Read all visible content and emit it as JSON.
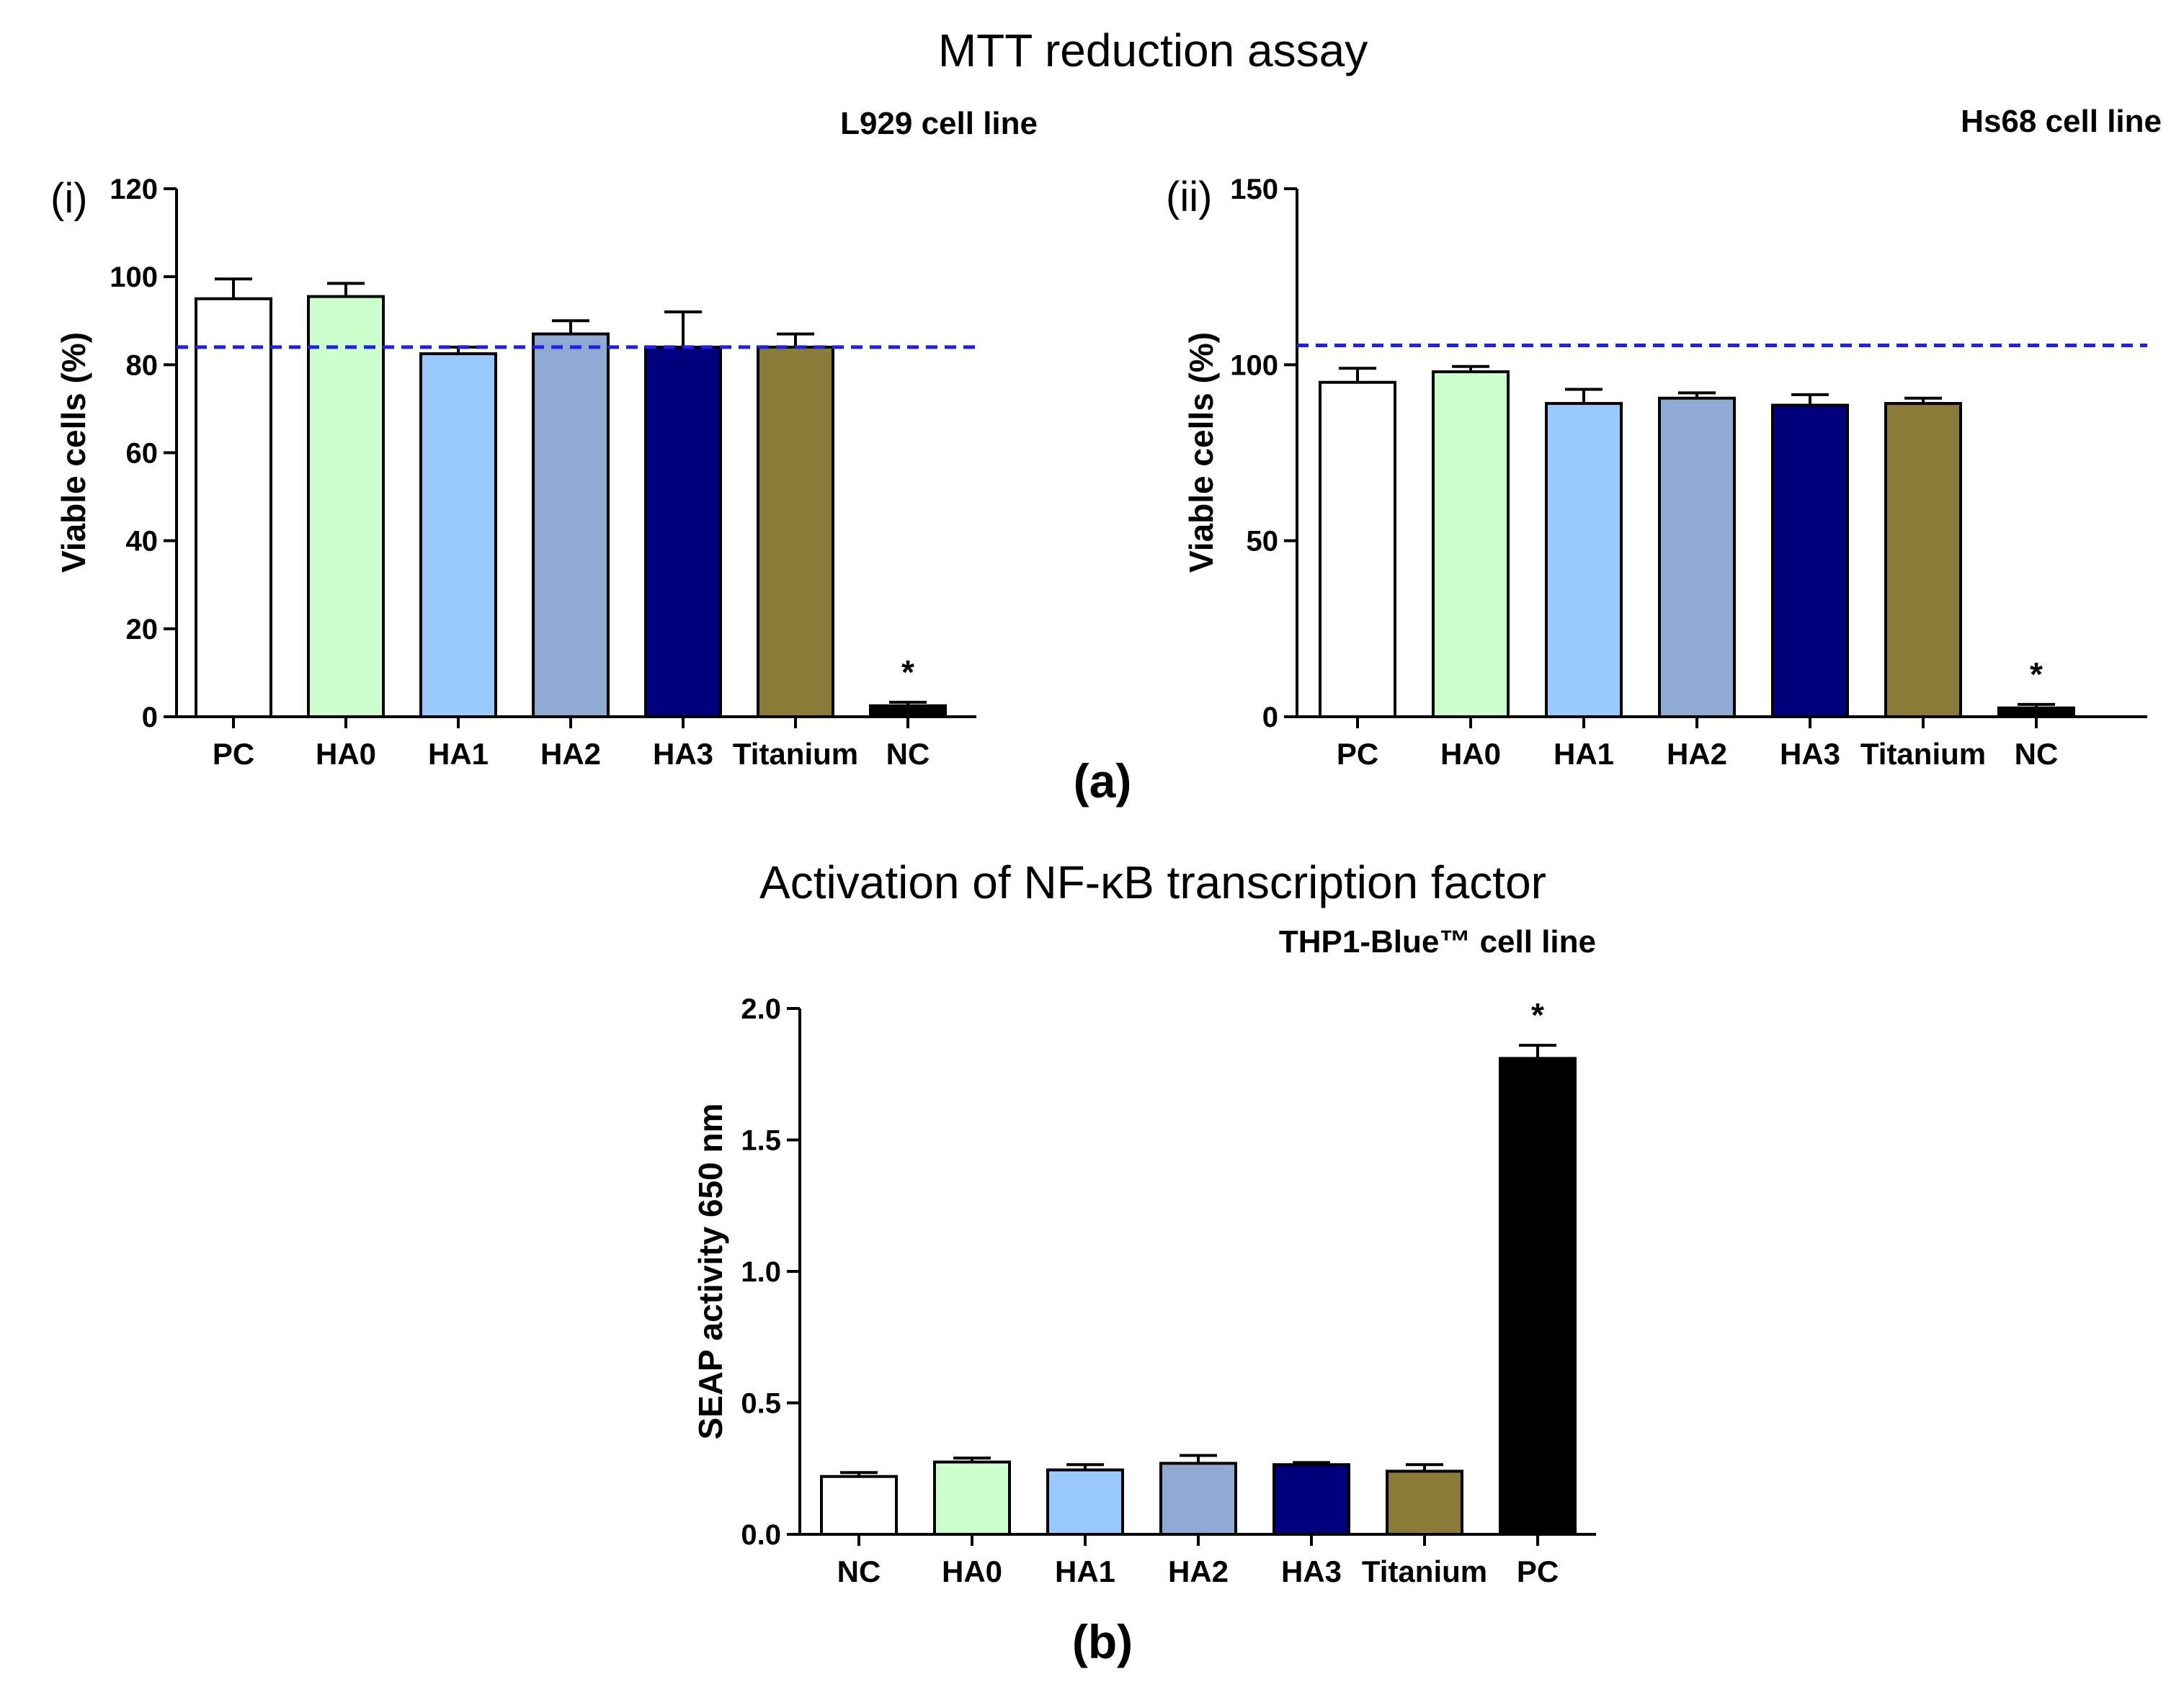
{
  "figure": {
    "title_a": "MTT reduction assay",
    "title_b": "Activation of NF-κB transcription factor",
    "label_a": "(a)",
    "label_b": "(b)"
  },
  "chart_data": [
    {
      "id": "chart1",
      "type": "bar",
      "panel_tag": "(i)",
      "title": "L929 cell line",
      "ylabel": "Viable cells (%)",
      "xlabel": "",
      "ylim": [
        0,
        120
      ],
      "yticks": [
        0,
        20,
        40,
        60,
        80,
        100,
        120
      ],
      "tick_labels": [
        "0",
        "20",
        "40",
        "60",
        "80",
        "100",
        "120"
      ],
      "categories": [
        "PC",
        "HA0",
        "HA1",
        "HA2",
        "HA3",
        "Titanium",
        "NC"
      ],
      "values": [
        95,
        95.5,
        82.5,
        87,
        84,
        84,
        2.5
      ],
      "errors": [
        4.5,
        3,
        1.5,
        3,
        8,
        3,
        0.8
      ],
      "colors": [
        "#ffffff",
        "#ccffcc",
        "#99c8ff",
        "#8eaad2",
        "#00007d",
        "#8a7b38",
        "#000000"
      ],
      "reference_line": 84,
      "reference_color": "#1f1fe6",
      "significance": [
        {
          "category": "NC",
          "label": "*"
        }
      ]
    },
    {
      "id": "chart2",
      "type": "bar",
      "panel_tag": "(ii)",
      "title": "Hs68 cell line",
      "ylabel": "Viable cells (%)",
      "xlabel": "",
      "ylim": [
        0,
        150
      ],
      "yticks": [
        0,
        50,
        100,
        150
      ],
      "tick_labels": [
        "0",
        "50",
        "100",
        "150"
      ],
      "categories": [
        "PC",
        "HA0",
        "HA1",
        "HA2",
        "HA3",
        "Titanium",
        "NC"
      ],
      "values": [
        95,
        98,
        89,
        90.5,
        88.5,
        89,
        2.5
      ],
      "errors": [
        4,
        1.5,
        4,
        1.5,
        3,
        1.5,
        1
      ],
      "colors": [
        "#ffffff",
        "#ccffcc",
        "#99c8ff",
        "#8eaad2",
        "#00007d",
        "#8a7b38",
        "#000000"
      ],
      "reference_line": 105.5,
      "reference_color": "#1f1fe6",
      "significance": [
        {
          "category": "NC",
          "label": "*"
        }
      ]
    },
    {
      "id": "chart3",
      "type": "bar",
      "panel_tag": "",
      "title": "THP1-Blue™ cell line",
      "ylabel": "SEAP activity  650 nm",
      "xlabel": "",
      "ylim": [
        0,
        2.0
      ],
      "yticks": [
        0,
        0.5,
        1.0,
        1.5,
        2.0
      ],
      "tick_labels": [
        "0.0",
        "0.5",
        "1.0",
        "1.5",
        "2.0"
      ],
      "categories": [
        "NC",
        "HA0",
        "HA1",
        "HA2",
        "HA3",
        "Titanium",
        "PC"
      ],
      "values": [
        0.22,
        0.275,
        0.245,
        0.27,
        0.265,
        0.24,
        1.81
      ],
      "errors": [
        0.015,
        0.015,
        0.02,
        0.03,
        0.008,
        0.025,
        0.05
      ],
      "colors": [
        "#ffffff",
        "#ccffcc",
        "#99c8ff",
        "#8eaad2",
        "#00007d",
        "#8a7b38",
        "#000000"
      ],
      "reference_line": null,
      "reference_color": "",
      "significance": [
        {
          "category": "PC",
          "label": "*"
        }
      ]
    }
  ]
}
